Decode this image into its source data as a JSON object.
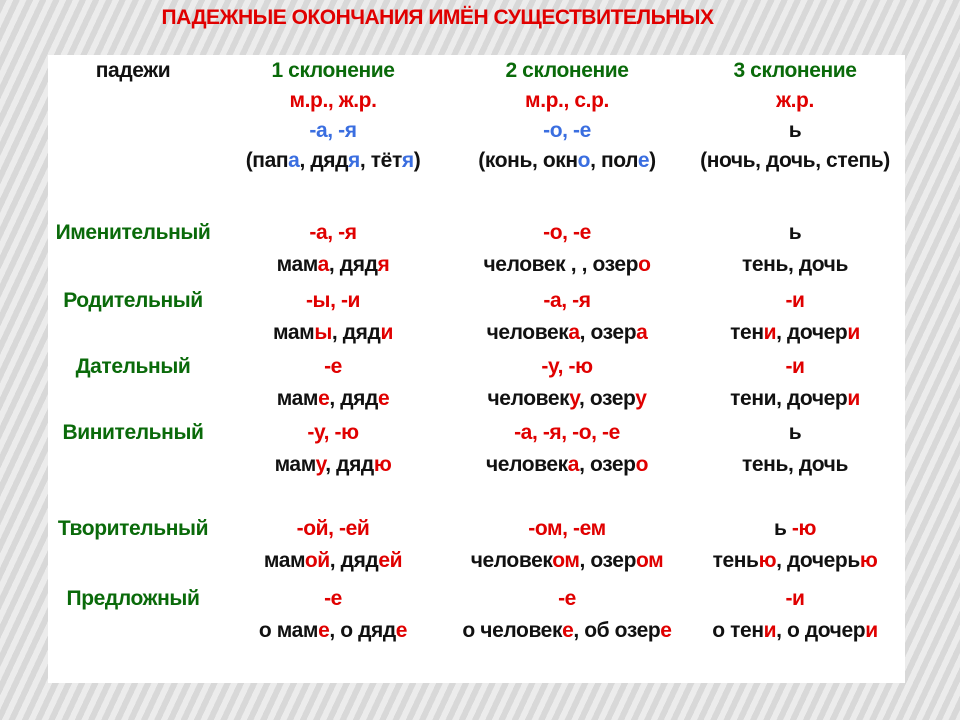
{
  "title": "ПАДЕЖНЫЕ ОКОНЧАНИЯ ИМЁН СУЩЕСТВИТЕЛЬНЫХ",
  "colors": {
    "k": "#111111",
    "r": "#e00000",
    "b": "#3a6ee0",
    "g": "#0a6a0a"
  },
  "header": {
    "cases_label": "падежи",
    "columns": [
      [
        [
          [
            "1 склонение",
            "g"
          ]
        ],
        [
          [
            "м.р., ж.р.",
            "r"
          ]
        ],
        [
          [
            "-а,  -я",
            "b"
          ]
        ],
        [
          [
            "(пап",
            "k"
          ],
          [
            "а",
            "b"
          ],
          [
            ", дяд",
            "k"
          ],
          [
            "я",
            "b"
          ],
          [
            ", тёт",
            "k"
          ],
          [
            "я",
            "b"
          ],
          [
            ")",
            "k"
          ]
        ]
      ],
      [
        [
          [
            "2 склонение",
            "g"
          ]
        ],
        [
          [
            "м.р., с.р.",
            "r"
          ]
        ],
        [
          [
            "-о, -е",
            "b"
          ]
        ],
        [
          [
            "(конь, окн",
            "k"
          ],
          [
            "о",
            "b"
          ],
          [
            ", пол",
            "k"
          ],
          [
            "е",
            "b"
          ],
          [
            ")",
            "k"
          ]
        ]
      ],
      [
        [
          [
            "3 склонение",
            "g"
          ]
        ],
        [
          [
            "ж.р.",
            "r"
          ]
        ],
        [
          [
            "ь",
            "k"
          ]
        ],
        [
          [
            "(ночь, дочь, степь)",
            "k"
          ]
        ]
      ]
    ]
  },
  "rows": [
    {
      "case": "Именительный",
      "cols": [
        [
          [
            [
              "-а,  -я",
              "r"
            ]
          ],
          [
            [
              "мам",
              "k"
            ],
            [
              "а",
              "r"
            ],
            [
              ", дяд",
              "k"
            ],
            [
              "я",
              "r"
            ]
          ]
        ],
        [
          [
            [
              "-о, -е",
              "r"
            ]
          ],
          [
            [
              "человек  , ,  озер",
              "k"
            ],
            [
              "о",
              "r"
            ]
          ]
        ],
        [
          [
            [
              "ь",
              "k"
            ]
          ],
          [
            [
              "тень,  дочь",
              "k"
            ]
          ]
        ]
      ]
    },
    {
      "case": "Родительный",
      "cols": [
        [
          [
            [
              "-ы, -и",
              "r"
            ]
          ],
          [
            [
              "мам",
              "k"
            ],
            [
              "ы",
              "r"
            ],
            [
              ", дяд",
              "k"
            ],
            [
              "и",
              "r"
            ]
          ]
        ],
        [
          [
            [
              "-а, -я",
              "r"
            ]
          ],
          [
            [
              "человек",
              "k"
            ],
            [
              "а",
              "r"
            ],
            [
              ", озер",
              "k"
            ],
            [
              "а",
              "r"
            ]
          ]
        ],
        [
          [
            [
              "-и",
              "r"
            ]
          ],
          [
            [
              "тен",
              "k"
            ],
            [
              "и",
              "r"
            ],
            [
              ",  дочер",
              "k"
            ],
            [
              "и",
              "r"
            ]
          ]
        ]
      ]
    },
    {
      "case": "Дательный",
      "cols": [
        [
          [
            [
              "-е",
              "r"
            ]
          ],
          [
            [
              "мам",
              "k"
            ],
            [
              "е",
              "r"
            ],
            [
              ", дяд",
              "k"
            ],
            [
              "е",
              "r"
            ]
          ]
        ],
        [
          [
            [
              "-у, -ю",
              "r"
            ]
          ],
          [
            [
              "человек",
              "k"
            ],
            [
              "у",
              "r"
            ],
            [
              ", озер",
              "k"
            ],
            [
              "у",
              "r"
            ]
          ]
        ],
        [
          [
            [
              "-и",
              "r"
            ]
          ],
          [
            [
              "тени,  дочер",
              "k"
            ],
            [
              "и",
              "r"
            ]
          ]
        ]
      ]
    },
    {
      "case": "Винительный",
      "cols": [
        [
          [
            [
              "-у, -ю",
              "r"
            ]
          ],
          [
            [
              "мам",
              "k"
            ],
            [
              "у",
              "r"
            ],
            [
              ", дяд",
              "k"
            ],
            [
              "ю",
              "r"
            ]
          ]
        ],
        [
          [
            [
              "-а, -я, -о, -е",
              "r"
            ]
          ],
          [
            [
              "человек",
              "k"
            ],
            [
              "а",
              "r"
            ],
            [
              ", озер",
              "k"
            ],
            [
              "о",
              "r"
            ]
          ]
        ],
        [
          [
            [
              "ь",
              "k"
            ]
          ],
          [
            [
              "тень,  дочь",
              "k"
            ]
          ]
        ]
      ]
    },
    {
      "case": "Творительный",
      "cols": [
        [
          [
            [
              "-ой, -ей",
              "r"
            ]
          ],
          [
            [
              "мам",
              "k"
            ],
            [
              "ой",
              "r"
            ],
            [
              ", дяд",
              "k"
            ],
            [
              "ей",
              "r"
            ]
          ]
        ],
        [
          [
            [
              "-ом, -ем",
              "r"
            ]
          ],
          [
            [
              "человек",
              "k"
            ],
            [
              "ом",
              "r"
            ],
            [
              ", озер",
              "k"
            ],
            [
              "ом",
              "r"
            ]
          ]
        ],
        [
          [
            [
              "ь  ",
              "k"
            ],
            [
              "-ю",
              "r"
            ]
          ],
          [
            [
              "тень",
              "k"
            ],
            [
              "ю",
              "r"
            ],
            [
              ",  дочерь",
              "k"
            ],
            [
              "ю",
              "r"
            ]
          ]
        ]
      ]
    },
    {
      "case": "Предложный",
      "cols": [
        [
          [
            [
              "-е",
              "r"
            ]
          ],
          [
            [
              "о мам",
              "k"
            ],
            [
              "е",
              "r"
            ],
            [
              ", о дяд",
              "k"
            ],
            [
              "е",
              "r"
            ]
          ]
        ],
        [
          [
            [
              "-е",
              "r"
            ]
          ],
          [
            [
              "о  человек",
              "k"
            ],
            [
              "е",
              "r"
            ],
            [
              ", об озер",
              "k"
            ],
            [
              "е",
              "r"
            ]
          ]
        ],
        [
          [
            [
              "-и",
              "r"
            ]
          ],
          [
            [
              "о тен",
              "k"
            ],
            [
              "и",
              "r"
            ],
            [
              ",  о дочер",
              "k"
            ],
            [
              "и",
              "r"
            ]
          ]
        ]
      ]
    }
  ]
}
